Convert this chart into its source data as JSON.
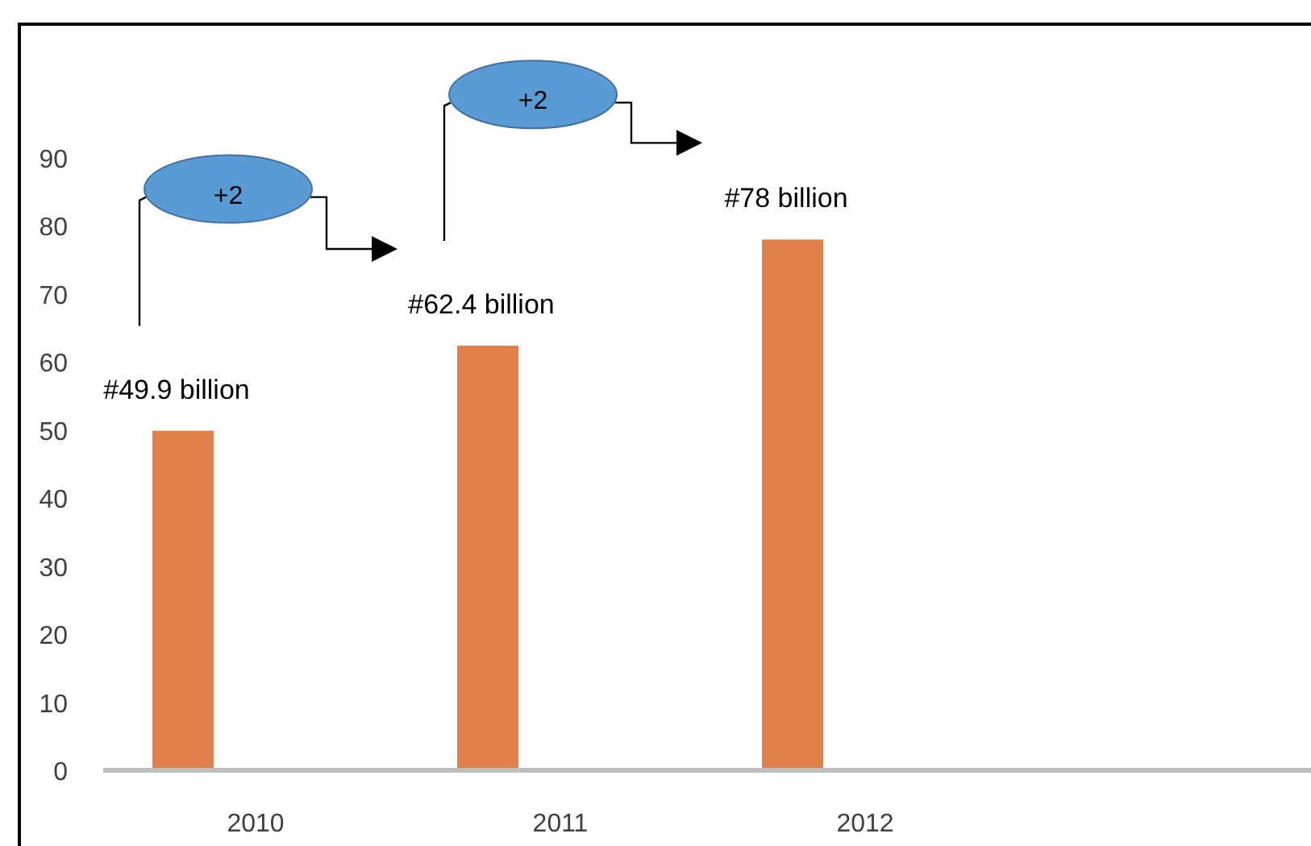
{
  "chart_data": {
    "type": "bar",
    "categories": [
      "2010",
      "2011",
      "2012",
      null
    ],
    "values": [
      49.9,
      62.4,
      78,
      null
    ],
    "value_labels": [
      "#49.9 billion",
      "#62.4 billion",
      "#78 billion",
      null
    ],
    "color": "#e0804a",
    "ylim": [
      0,
      90
    ],
    "yticks": [
      0,
      10,
      20,
      30,
      40,
      50,
      60,
      70,
      80,
      90
    ],
    "annotations": [
      "+2",
      "+2"
    ]
  }
}
